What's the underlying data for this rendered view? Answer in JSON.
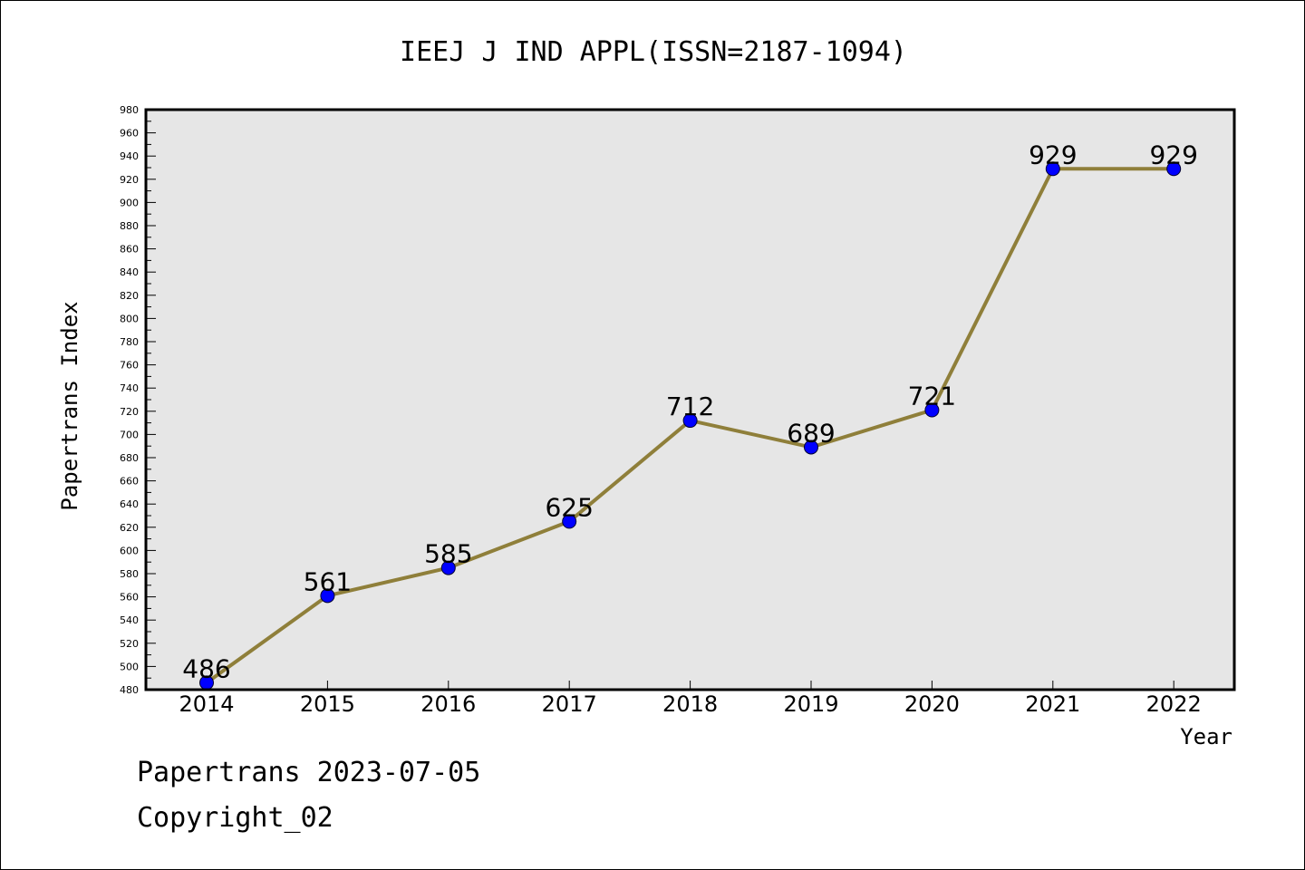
{
  "chart_data": {
    "type": "line",
    "title": "IEEJ J IND APPL(ISSN=2187-1094)",
    "xlabel": "Year",
    "ylabel": "Papertrans Index",
    "x": [
      "2014",
      "2015",
      "2016",
      "2017",
      "2018",
      "2019",
      "2020",
      "2021",
      "2022"
    ],
    "series": [
      {
        "values": [
          486,
          561,
          585,
          625,
          712,
          689,
          721,
          929,
          929
        ]
      }
    ],
    "data_labels": [
      "486",
      "561",
      "585",
      "625",
      "712",
      "689",
      "721",
      "929",
      "929"
    ],
    "ylim": [
      480,
      980
    ],
    "ytick_step": 20,
    "grid": false,
    "line_color": "#8f7f3a",
    "marker_color": "#0000ff",
    "plot_background": "#e6e6e6"
  },
  "footer": {
    "stamp": "Papertrans 2023-07-05",
    "copyright": "Copyright_02"
  }
}
